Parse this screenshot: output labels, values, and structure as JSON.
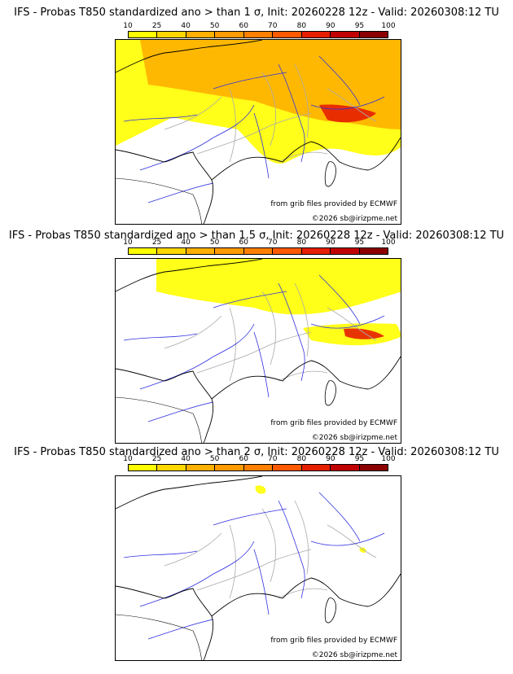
{
  "panels": [
    {
      "title": "IFS - Probas T850  standardized ano > than 1 σ, Init: 20260228 12z - Valid: 20260308:12 TU",
      "source_credit": "from grib files provided by ECMWF",
      "copyright": "©2026 sb@irizpme.net"
    },
    {
      "title": "IFS - Probas T850  standardized ano > than 1.5 σ, Init: 20260228 12z - Valid: 20260308:12 TU",
      "source_credit": "from grib files provided by ECMWF",
      "copyright": "©2026 sb@irizpme.net"
    },
    {
      "title": "IFS - Probas T850  standardized ano > than 2 σ, Init: 20260228 12z - Valid: 20260308:12 TU",
      "source_credit": "from grib files provided by ECMWF",
      "copyright": "©2026 sb@irizpme.net"
    }
  ],
  "colorbar": {
    "ticks": [
      "10",
      "25",
      "40",
      "50",
      "60",
      "70",
      "80",
      "90",
      "95",
      "100"
    ],
    "colors": [
      "#ffff00",
      "#ffd700",
      "#ffb000",
      "#ff9a00",
      "#ff7f00",
      "#ff5a00",
      "#e61e00",
      "#c00000",
      "#8b0000"
    ]
  },
  "map_colors": {
    "coast": "#000000",
    "rivers": "#3030e0",
    "borders": "#aaaaaa",
    "prob_low": "#ffff00",
    "prob_mid": "#ffb000",
    "prob_high": "#e61e00"
  }
}
